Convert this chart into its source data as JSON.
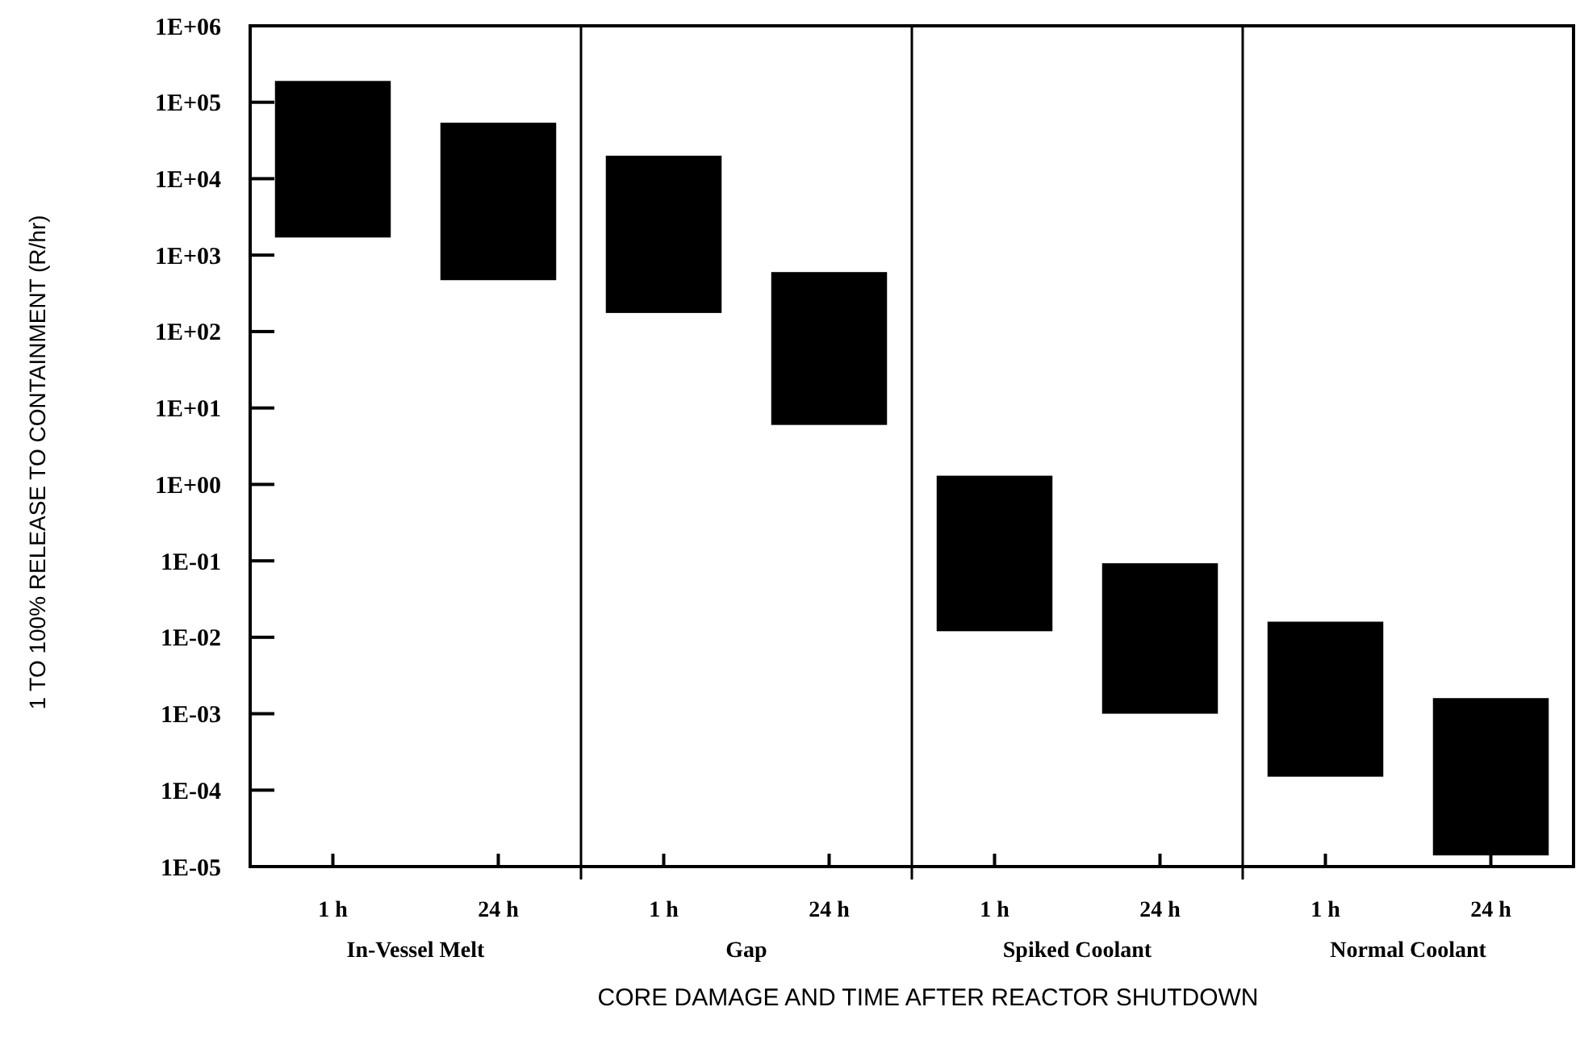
{
  "chart_data": {
    "type": "bar",
    "xlabel": "CORE DAMAGE AND TIME AFTER REACTOR SHUTDOWN",
    "ylabel": "1 TO 100% RELEASE TO CONTAINMENT (R/hr)",
    "categories": [
      "1 h",
      "24 h",
      "1 h",
      "24 h",
      "1 h",
      "24 h",
      "1 h",
      "24 h"
    ],
    "base": [
      1700,
      470,
      175,
      6,
      0.012,
      0.001,
      0.00015,
      1.4e-05
    ],
    "values": [
      188300,
      53530,
      19825,
      594,
      1.288,
      0.092,
      0.01585,
      0.001586
    ],
    "color": "#000000",
    "log": true,
    "grid": false,
    "ylim": [
      1e-05,
      1000000
    ],
    "yticks": [
      {
        "value": 1000000,
        "label": "1E+06"
      },
      {
        "value": 100000,
        "label": "1E+05"
      },
      {
        "value": 10000,
        "label": "1E+04"
      },
      {
        "value": 1000,
        "label": "1E+03"
      },
      {
        "value": 100,
        "label": "1E+02"
      },
      {
        "value": 10,
        "label": "1E+01"
      },
      {
        "value": 1,
        "label": "1E+00"
      },
      {
        "value": 0.1,
        "label": "1E-01"
      },
      {
        "value": 0.01,
        "label": "1E-02"
      },
      {
        "value": 0.001,
        "label": "1E-03"
      },
      {
        "value": 0.0001,
        "label": "1E-04"
      },
      {
        "value": 1e-05,
        "label": "1E-05"
      }
    ],
    "annotations": [
      "In-Vessel Melt",
      "Gap",
      "Spiked Coolant",
      "Normal Coolant"
    ]
  }
}
